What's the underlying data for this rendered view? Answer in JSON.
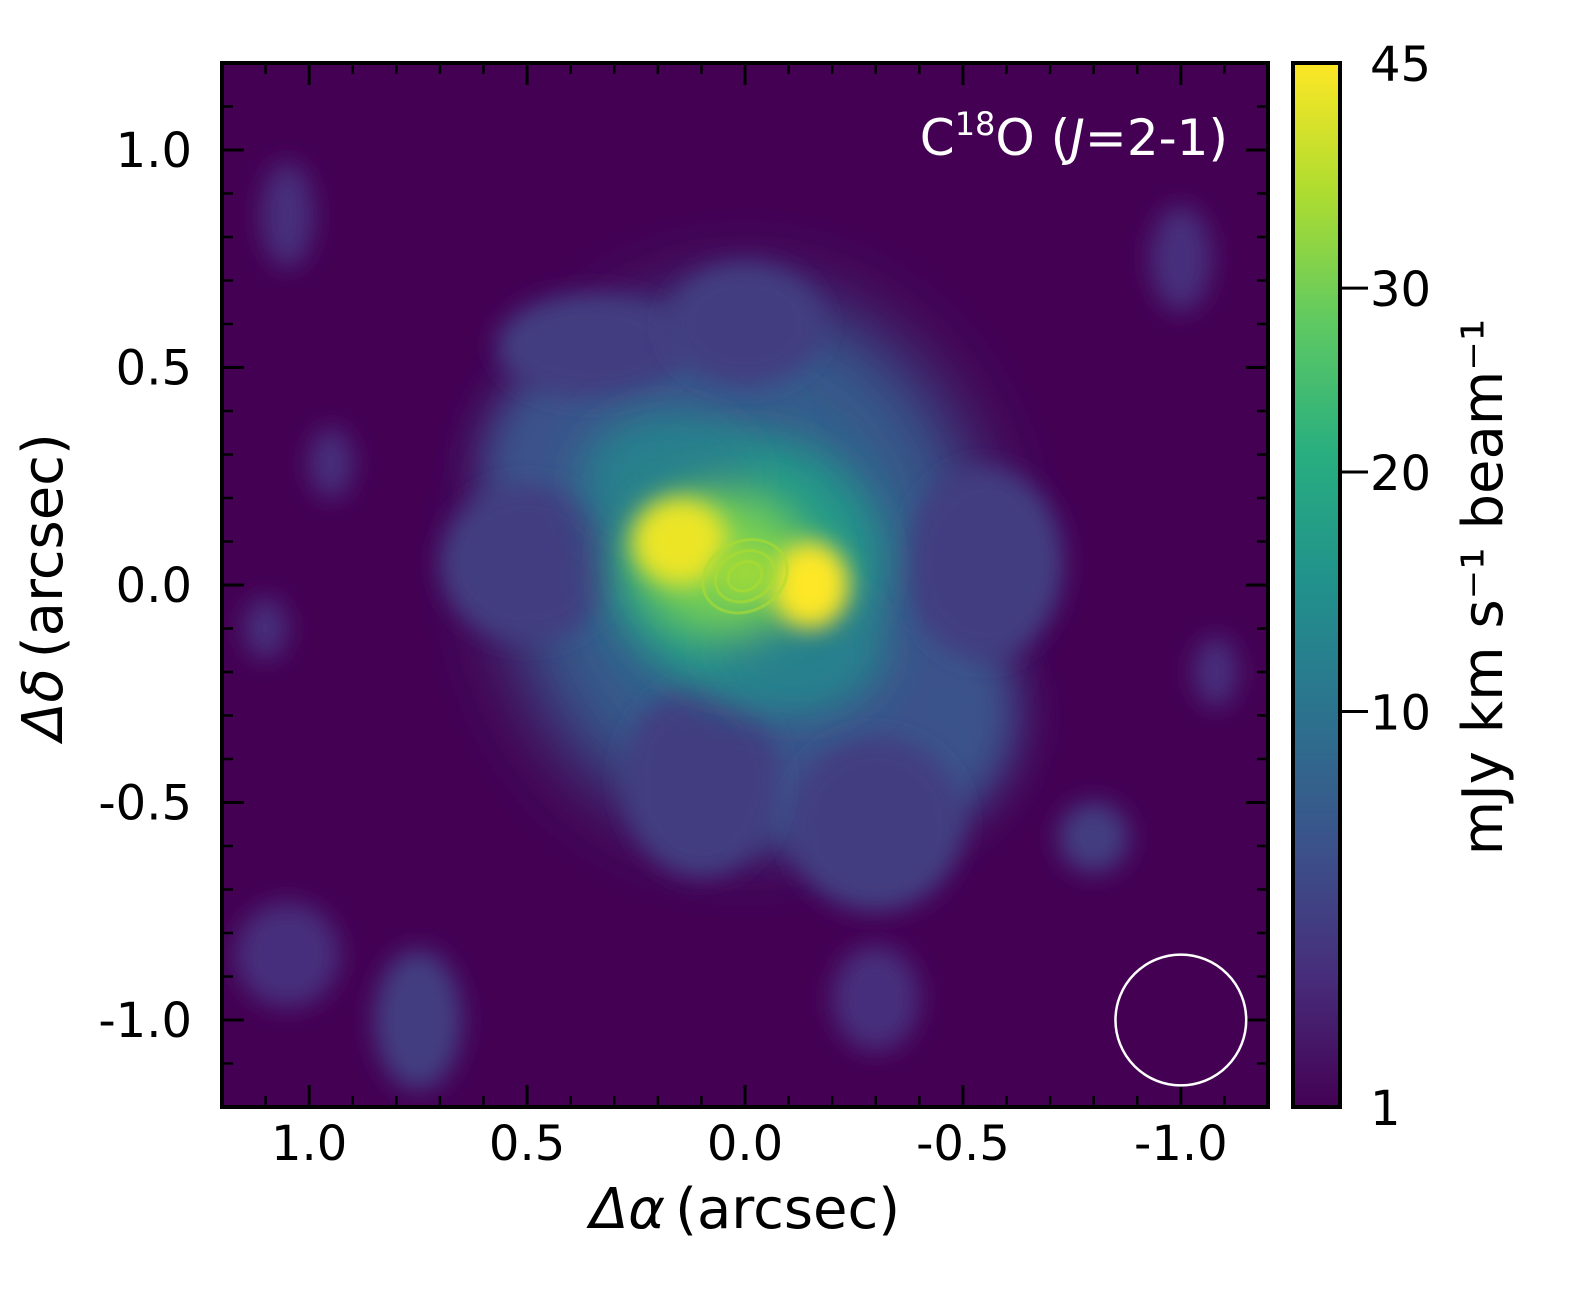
{
  "chart_data": {
    "type": "heatmap",
    "title": "",
    "annotation": {
      "species": "C",
      "isotope": "18",
      "species_tail": "O (",
      "j_symbol": "J",
      "transition": "=2-1)"
    },
    "xlabel": {
      "symbol": "Δα",
      "unit": "(arcsec)"
    },
    "ylabel": {
      "symbol": "Δδ",
      "unit": "(arcsec)"
    },
    "xlim": [
      1.2,
      -1.2
    ],
    "ylim": [
      -1.2,
      1.2
    ],
    "x_ticks": [
      1.0,
      0.5,
      0.0,
      -0.5,
      -1.0
    ],
    "x_tick_labels": [
      "1.0",
      "0.5",
      "0.0",
      "-0.5",
      "-1.0"
    ],
    "y_ticks": [
      1.0,
      0.5,
      0.0,
      -0.5,
      -1.0
    ],
    "y_tick_labels": [
      "1.0",
      "0.5",
      "0.0",
      "-0.5",
      "-1.0"
    ],
    "colorbar": {
      "label": "mJy km s⁻¹ beam⁻¹",
      "scale": "sqrt",
      "range": [
        1,
        45
      ],
      "ticks": [
        1,
        10,
        20,
        30,
        45
      ],
      "tick_labels": [
        "1",
        "10",
        "20",
        "30",
        "45"
      ],
      "colormap": [
        "#440154",
        "#472d7b",
        "#3b528b",
        "#2c728e",
        "#21918c",
        "#28ae80",
        "#5ec962",
        "#addc30",
        "#fde725"
      ]
    },
    "emission_peak_mjy": 45,
    "peak_offsets_arcsec": [
      [
        0.15,
        0.1
      ],
      [
        -0.15,
        0.0
      ]
    ],
    "beam": {
      "x": -1.0,
      "y": -1.0,
      "major_arcsec": 0.15,
      "minor_arcsec": 0.15
    },
    "background_color": "#440154",
    "annotation_color": "#ffffff"
  }
}
